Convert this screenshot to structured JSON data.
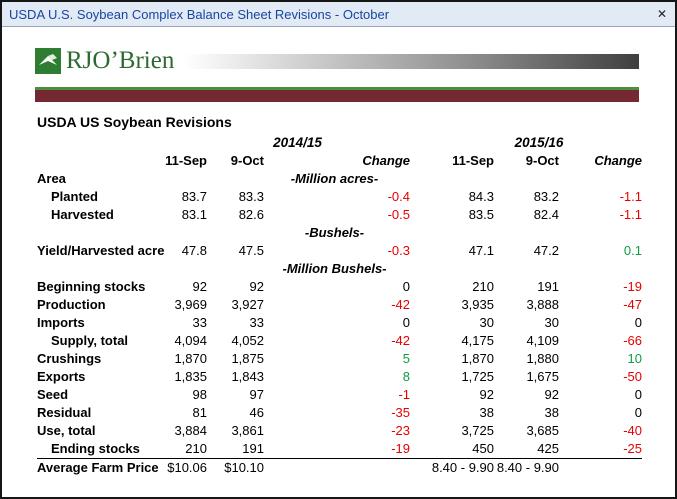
{
  "window": {
    "title": "USDA U.S. Soybean Complex Balance Sheet Revisions - October",
    "close_glyph": "✕"
  },
  "logo": {
    "text": "RJO’Brien"
  },
  "colors": {
    "negative": "#e80000",
    "positive": "#0f9d45",
    "maroon_bar": "#732832",
    "green_bar": "#4e8f3c",
    "logo_green": "#2d6a31",
    "title_blue": "#1746a0"
  },
  "table": {
    "title": "USDA US Soybean Revisions",
    "group_headers": [
      "2014/15",
      "2015/16"
    ],
    "col_headers": [
      "11-Sep",
      "9-Oct",
      "Change",
      "11-Sep",
      "9-Oct",
      "Change"
    ],
    "rows": [
      {
        "label": "Area",
        "unit": "-Million acres-"
      },
      {
        "label": "Planted",
        "indent": true,
        "values": [
          "83.7",
          "83.3",
          "-0.4",
          "84.3",
          "83.2",
          "-1.1"
        ]
      },
      {
        "label": "Harvested",
        "indent": true,
        "values": [
          "83.1",
          "82.6",
          "-0.5",
          "83.5",
          "82.4",
          "-1.1"
        ]
      },
      {
        "label": "",
        "unit": "-Bushels-"
      },
      {
        "label": "Yield/Harvested acre",
        "values": [
          "47.8",
          "47.5",
          "-0.3",
          "47.1",
          "47.2",
          "0.1"
        ]
      },
      {
        "label": "",
        "unit": "-Million Bushels-"
      },
      {
        "label": "Beginning stocks",
        "values": [
          "92",
          "92",
          "0",
          "210",
          "191",
          "-19"
        ]
      },
      {
        "label": "Production",
        "values": [
          "3,969",
          "3,927",
          "-42",
          "3,935",
          "3,888",
          "-47"
        ]
      },
      {
        "label": "Imports",
        "values": [
          "33",
          "33",
          "0",
          "30",
          "30",
          "0"
        ]
      },
      {
        "label": "Supply, total",
        "indent": true,
        "values": [
          "4,094",
          "4,052",
          "-42",
          "4,175",
          "4,109",
          "-66"
        ]
      },
      {
        "label": "Crushings",
        "values": [
          "1,870",
          "1,875",
          "5",
          "1,870",
          "1,880",
          "10"
        ]
      },
      {
        "label": "Exports",
        "values": [
          "1,835",
          "1,843",
          "8",
          "1,725",
          "1,675",
          "-50"
        ]
      },
      {
        "label": "Seed",
        "values": [
          "98",
          "97",
          "-1",
          "92",
          "92",
          "0"
        ]
      },
      {
        "label": "Residual",
        "values": [
          "81",
          "46",
          "-35",
          "38",
          "38",
          "0"
        ]
      },
      {
        "label": "Use, total",
        "values": [
          "3,884",
          "3,861",
          "-23",
          "3,725",
          "3,685",
          "-40"
        ]
      },
      {
        "label": "Ending stocks",
        "indent": true,
        "values": [
          "210",
          "191",
          "-19",
          "450",
          "425",
          "-25"
        ]
      },
      {
        "label": "Average Farm Price",
        "top_border": true,
        "values": [
          "$10.06",
          "$10.10",
          "",
          "8.40 - 9.90",
          "8.40 - 9.90",
          ""
        ]
      }
    ]
  }
}
